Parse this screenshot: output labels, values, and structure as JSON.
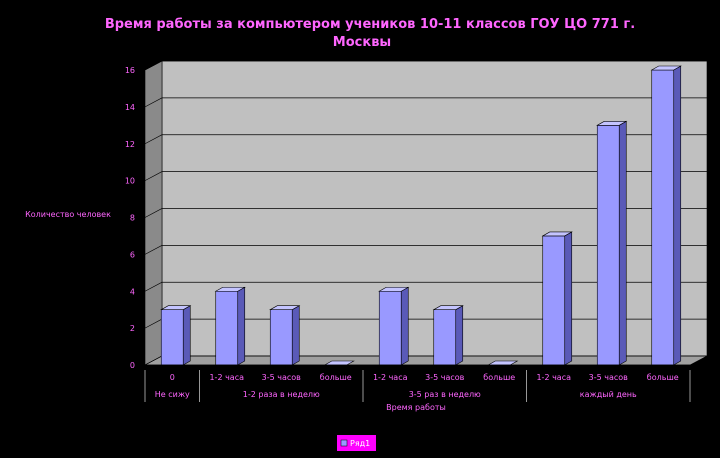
{
  "chart_data": {
    "type": "bar",
    "title": "Время работы за компьютером учеников 10-11 классов ГОУ ЦО 771 г. Москвы",
    "ylabel": "Количество человек",
    "xlabel": "Время работы",
    "ylim": [
      0,
      16
    ],
    "yticks": [
      0,
      2,
      4,
      6,
      8,
      10,
      12,
      14,
      16
    ],
    "grid": true,
    "legend_position": "bottom",
    "categories": [
      "0",
      "1-2 часа",
      "3-5 часов",
      "больше",
      "1-2 часа",
      "3-5 часов",
      "больше",
      "1-2 часа",
      "3-5 часов",
      "больше"
    ],
    "groups": [
      {
        "label": "Не сижу",
        "count": 1
      },
      {
        "label": "1-2 раза в неделю",
        "count": 3
      },
      {
        "label": "3-5 раз в неделю",
        "count": 3
      },
      {
        "label": "каждый день",
        "count": 3
      }
    ],
    "series": [
      {
        "name": "Ряд1",
        "values": [
          3,
          4,
          3,
          0,
          4,
          3,
          0,
          7,
          13,
          16
        ]
      }
    ],
    "colors": {
      "bar_front": "#9999FF",
      "bar_side": "#5A5AB8",
      "bar_top": "#C4C4FF",
      "wall": "#C0C0C0",
      "wall_side": "#8A8A8A",
      "floor": "#A0A0A0",
      "text": "#FF66FF",
      "legend_bg": "#FF00FF"
    }
  }
}
